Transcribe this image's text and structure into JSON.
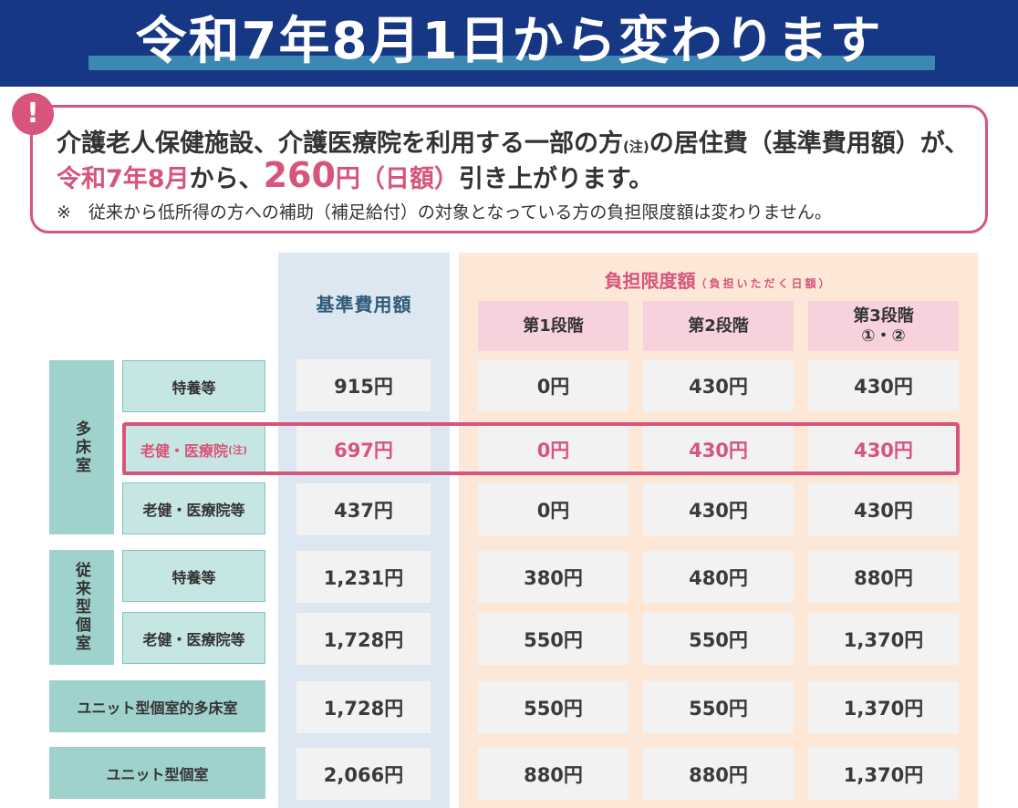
{
  "banner": {
    "title": "令和7年8月1日から変わります"
  },
  "notice": {
    "icon": "exclamation-icon",
    "line1_main": "介護老人保健施設、介護医療院を利用する一部の方",
    "line1_note": "(注)",
    "line1_end": "の居住費（基準費用額）が、",
    "line2_date": "令和7年8月",
    "line2_mid": "から、",
    "line2_amount": "260",
    "line2_unit": "円（日額）",
    "line2_end": "引き上がります。",
    "line3": "※　従来から低所得の方への補助（補足給付）の対象となっている方の負担限度額は変わりません。"
  },
  "table": {
    "header_standard": "基準費用額",
    "header_limit": "負担限度額",
    "header_limit_sub": "（負担いただく日額）",
    "stages": [
      "第1段階",
      "第2段階",
      "第3段階"
    ],
    "stage3_sub": "①・②",
    "group_multi": "多床室",
    "group_private": "従来型個室",
    "labels": {
      "multi_tokuyo": "特養等",
      "multi_roken_note_main": "老健・医療院",
      "multi_roken_note_suffix": "(注)",
      "multi_roken": "老健・医療院等",
      "priv_tokuyo": "特養等",
      "priv_roken": "老健・医療院等",
      "unit_multi": "ユニット型個室的多床室",
      "unit_private": "ユニット型個室"
    },
    "rows": [
      [
        "915円",
        "0円",
        "430円",
        "430円"
      ],
      [
        "697円",
        "0円",
        "430円",
        "430円"
      ],
      [
        "437円",
        "0円",
        "430円",
        "430円"
      ],
      [
        "1,231円",
        "380円",
        "480円",
        "880円"
      ],
      [
        "1,728円",
        "550円",
        "550円",
        "1,370円"
      ],
      [
        "1,728円",
        "550円",
        "550円",
        "1,370円"
      ],
      [
        "2,066円",
        "880円",
        "880円",
        "1,370円"
      ]
    ]
  },
  "colors": {
    "banner": "#163784",
    "accent_pink": "#d7557b",
    "standard_col": "#dce7f2",
    "limit_col": "#fde8d8",
    "label_teal": "#9fd1cd"
  }
}
